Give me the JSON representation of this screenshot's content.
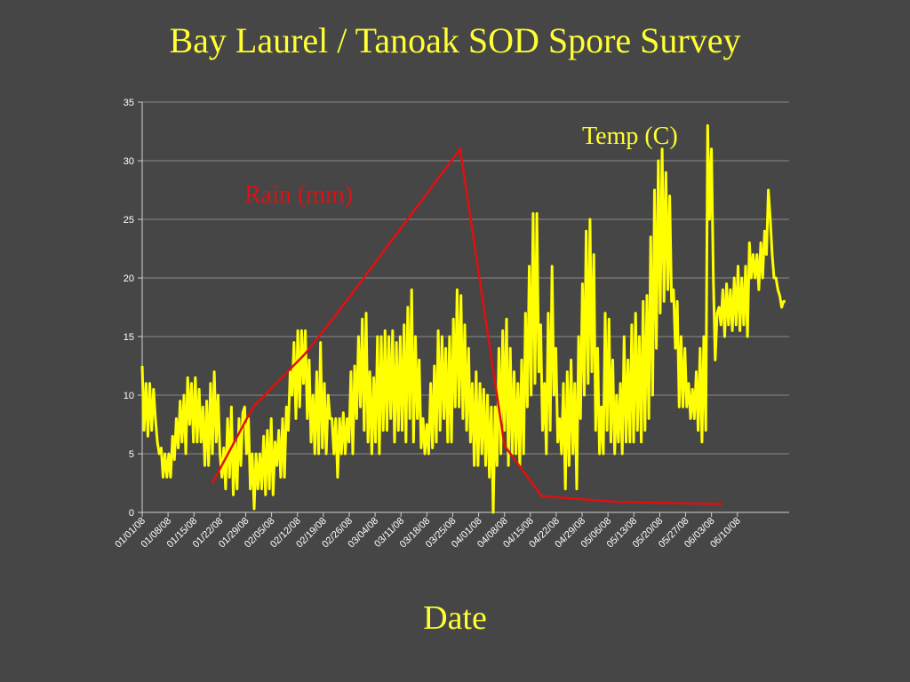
{
  "slide": {
    "title": "Bay Laurel / Tanoak SOD Spore Survey"
  },
  "chart_data": {
    "type": "line",
    "title": "Bay Laurel / Tanoak SOD Spore Survey",
    "xlabel": "Date",
    "ylabel": "",
    "ylim": [
      0,
      35
    ],
    "yticks": [
      0,
      5,
      10,
      15,
      20,
      25,
      30,
      35
    ],
    "xlim": [
      "2008-01-01",
      "2008-06-24"
    ],
    "x_tick_labels": [
      "01/01/08",
      "01/08/08",
      "01/15/08",
      "01/22/08",
      "01/29/08",
      "02/05/08",
      "02/12/08",
      "02/19/08",
      "02/26/08",
      "03/04/08",
      "03/11/08",
      "03/18/08",
      "03/25/08",
      "04/01/08",
      "04/08/08",
      "04/15/08",
      "04/22/08",
      "04/29/08",
      "05/06/08",
      "05/13/08",
      "05/20/08",
      "05/27/08",
      "06/03/08",
      "06/10/08"
    ],
    "grid": "horizontal",
    "colors": {
      "background": "#464646",
      "text": "#ffff33",
      "temp": "#ffff00",
      "rain": "#e01010",
      "grid": "#8a8a8a",
      "axis": "#d0d0d0"
    },
    "series": [
      {
        "name": "Rain (mm)",
        "color": "#e01010",
        "label_color": "#e01010",
        "points": [
          [
            "2008-01-20",
            2.5
          ],
          [
            "2008-01-31",
            9.0
          ],
          [
            "2008-02-14",
            13.5
          ],
          [
            "2008-02-24",
            17.5
          ],
          [
            "2008-03-27",
            31.0
          ],
          [
            "2008-04-08",
            5.7
          ],
          [
            "2008-04-18",
            1.4
          ],
          [
            "2008-05-08",
            0.9
          ],
          [
            "2008-06-06",
            0.7
          ]
        ]
      },
      {
        "name": "Temp (C)",
        "color": "#ffff00",
        "label_color": "#ffff33",
        "start_date": "2008-01-01",
        "end_date": "2008-06-23",
        "values": [
          12.5,
          7,
          11,
          6.5,
          11,
          7,
          10.5,
          8,
          6,
          5,
          5.5,
          3,
          5,
          3,
          5,
          3,
          6.5,
          4.5,
          8,
          5.5,
          9.5,
          6,
          10,
          5,
          11.5,
          7.5,
          11,
          6,
          11.5,
          6,
          10.5,
          6,
          9,
          4,
          9.5,
          4,
          11,
          5,
          12,
          6,
          10,
          5,
          3,
          5.5,
          2,
          8,
          3,
          9,
          1.5,
          6,
          2,
          8,
          4,
          8.5,
          9,
          5,
          8,
          2,
          5,
          0.3,
          5,
          2,
          5,
          2,
          6.5,
          1.5,
          7,
          2,
          8,
          1.5,
          6,
          4,
          7,
          3,
          8,
          3,
          9,
          7,
          12,
          10,
          14.5,
          8,
          15.5,
          9,
          15.5,
          11,
          15.5,
          8,
          13,
          6,
          10,
          5,
          12,
          5,
          14.5,
          5.5,
          11,
          5,
          10,
          8,
          8,
          5,
          8,
          3,
          8,
          5,
          8.5,
          5,
          8,
          6,
          12,
          5,
          12.5,
          8,
          15,
          9,
          16.5,
          7,
          17,
          6,
          12,
          5,
          11.5,
          6,
          15,
          5,
          15,
          7,
          15.5,
          7,
          15,
          8,
          15.5,
          6,
          14.5,
          7,
          15,
          7,
          16,
          6,
          17.5,
          8,
          19,
          6,
          15,
          8,
          13,
          5.5,
          8,
          5,
          7.5,
          5,
          11,
          5.5,
          12.5,
          6,
          15.5,
          7,
          15,
          8,
          14,
          6,
          15,
          6,
          16.5,
          9,
          19,
          9,
          18.5,
          8,
          16,
          7,
          14,
          6,
          11,
          4,
          12,
          4,
          11,
          5,
          10.5,
          4,
          10,
          3,
          9,
          0,
          9,
          4,
          14,
          5,
          15.5,
          7,
          16.5,
          4,
          14,
          5,
          12,
          5,
          11,
          4,
          13,
          5,
          17,
          9,
          21,
          10,
          25.5,
          11,
          25.5,
          12,
          16,
          7,
          11,
          5,
          17,
          7,
          21,
          10,
          14,
          6,
          8,
          5,
          11,
          2,
          12,
          4,
          13,
          5,
          11,
          2,
          15,
          8,
          19.5,
          10,
          24,
          11,
          25,
          12,
          22,
          7,
          14,
          5,
          9,
          5,
          17,
          7,
          16.5,
          6,
          13,
          5,
          10,
          6,
          11,
          5,
          15,
          6,
          13,
          6,
          16,
          6,
          17,
          7,
          15,
          6,
          18,
          7,
          18.5,
          8,
          23.5,
          10,
          27.5,
          14,
          30,
          17,
          31,
          18,
          29,
          19,
          27,
          18,
          19,
          14,
          18,
          9,
          15,
          9,
          14,
          9,
          11,
          8,
          10.5,
          8,
          12,
          7,
          14,
          6,
          15,
          7,
          33,
          25,
          31,
          20,
          13,
          17,
          17.5,
          16,
          19,
          15,
          19.5,
          16,
          19,
          15.5,
          20,
          16,
          21,
          15.5,
          20,
          16,
          21,
          15,
          23,
          20,
          22,
          20,
          22,
          19,
          23,
          20,
          24,
          22,
          27.5,
          25,
          22,
          20,
          20,
          19,
          18.5,
          17.5,
          18,
          18
        ]
      }
    ]
  }
}
